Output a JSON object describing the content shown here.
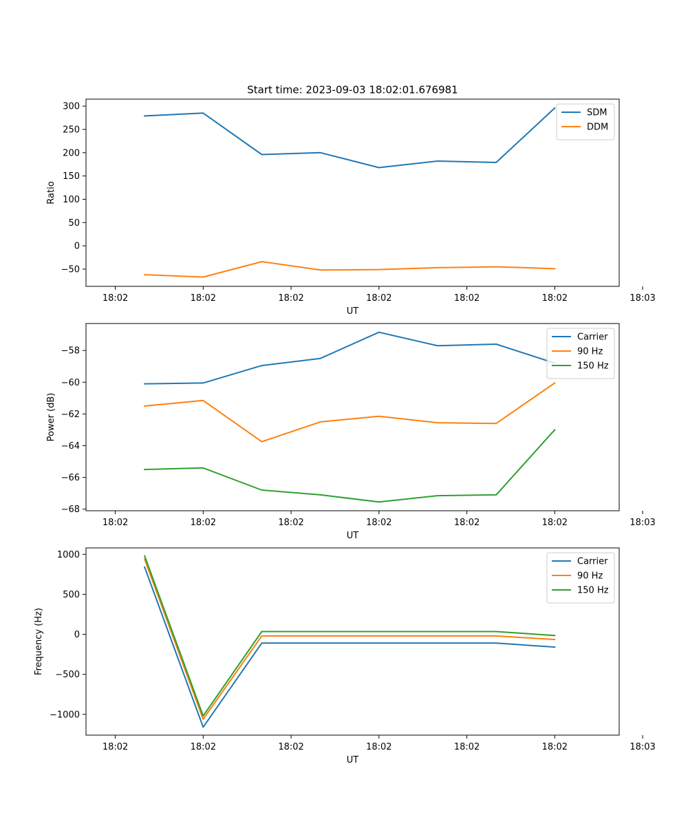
{
  "figure_title": "Start time: 2023-09-03 18:02:01.676981",
  "chart_data": [
    {
      "type": "line",
      "title": "Start time: 2023-09-03 18:02:01.676981",
      "xlabel": "UT",
      "ylabel": "Ratio",
      "x": [
        0.5,
        1.5,
        2.5,
        3.5,
        4.5,
        5.5,
        6.5,
        7.5
      ],
      "xlim": [
        -0.5,
        8.6
      ],
      "xticks": [
        0,
        1.5,
        3,
        4.5,
        6,
        7.5,
        9
      ],
      "xtick_labels": [
        "18:02",
        "18:02",
        "18:02",
        "18:02",
        "18:02",
        "18:02",
        "18:03"
      ],
      "ylim": [
        -87,
        315
      ],
      "yticks": [
        -50,
        0,
        50,
        100,
        150,
        200,
        250,
        300
      ],
      "legend_loc": "upper right",
      "series": [
        {
          "name": "SDM",
          "color": "#1f77b4",
          "values": [
            279,
            285,
            196,
            200,
            168,
            182,
            179,
            296
          ]
        },
        {
          "name": "DDM",
          "color": "#ff7f0e",
          "values": [
            -62,
            -67,
            -34,
            -52,
            -51,
            -47,
            -45,
            -49
          ]
        }
      ]
    },
    {
      "type": "line",
      "title": "",
      "xlabel": "UT",
      "ylabel": "Power (dB)",
      "x": [
        0.5,
        1.5,
        2.5,
        3.5,
        4.5,
        5.5,
        6.5,
        7.5
      ],
      "xlim": [
        -0.5,
        8.6
      ],
      "xticks": [
        0,
        1.5,
        3,
        4.5,
        6,
        7.5,
        9
      ],
      "xtick_labels": [
        "18:02",
        "18:02",
        "18:02",
        "18:02",
        "18:02",
        "18:02",
        "18:03"
      ],
      "ylim": [
        -68.1,
        -56.3
      ],
      "yticks": [
        -68,
        -66,
        -64,
        -62,
        -60,
        -58
      ],
      "ytick_labels": [
        "−68",
        "−66",
        "−64",
        "−62",
        "−60",
        "−58"
      ],
      "legend_loc": "upper right",
      "series": [
        {
          "name": "Carrier",
          "color": "#1f77b4",
          "values": [
            -60.1,
            -60.05,
            -58.95,
            -58.5,
            -56.85,
            -57.7,
            -57.6,
            -58.8
          ]
        },
        {
          "name": "90 Hz",
          "color": "#ff7f0e",
          "values": [
            -61.5,
            -61.15,
            -63.75,
            -62.5,
            -62.15,
            -62.55,
            -62.6,
            -60.05
          ]
        },
        {
          "name": "150 Hz",
          "color": "#2ca02c",
          "values": [
            -65.5,
            -65.4,
            -66.8,
            -67.1,
            -67.55,
            -67.15,
            -67.1,
            -63.0
          ]
        }
      ]
    },
    {
      "type": "line",
      "title": "",
      "xlabel": "UT",
      "ylabel": "Frequency (Hz)",
      "x": [
        0.5,
        1.5,
        2.5,
        3.5,
        4.5,
        5.5,
        6.5,
        7.5
      ],
      "xlim": [
        -0.5,
        8.6
      ],
      "xticks": [
        0,
        1.5,
        3,
        4.5,
        6,
        7.5,
        9
      ],
      "xtick_labels": [
        "18:02",
        "18:02",
        "18:02",
        "18:02",
        "18:02",
        "18:02",
        "18:03"
      ],
      "ylim": [
        -1260,
        1080
      ],
      "yticks": [
        -1000,
        -500,
        0,
        500,
        1000
      ],
      "ytick_labels": [
        "−1000",
        "−500",
        "0",
        "500",
        "1000"
      ],
      "legend_loc": "upper right",
      "series": [
        {
          "name": "Carrier",
          "color": "#1f77b4",
          "values": [
            840,
            -1160,
            -110,
            -110,
            -110,
            -110,
            -110,
            -160
          ]
        },
        {
          "name": "90 Hz",
          "color": "#ff7f0e",
          "values": [
            940,
            -1060,
            -20,
            -20,
            -20,
            -20,
            -20,
            -65
          ]
        },
        {
          "name": "150 Hz",
          "color": "#2ca02c",
          "values": [
            980,
            -1020,
            35,
            35,
            35,
            35,
            35,
            -15
          ]
        }
      ]
    }
  ]
}
